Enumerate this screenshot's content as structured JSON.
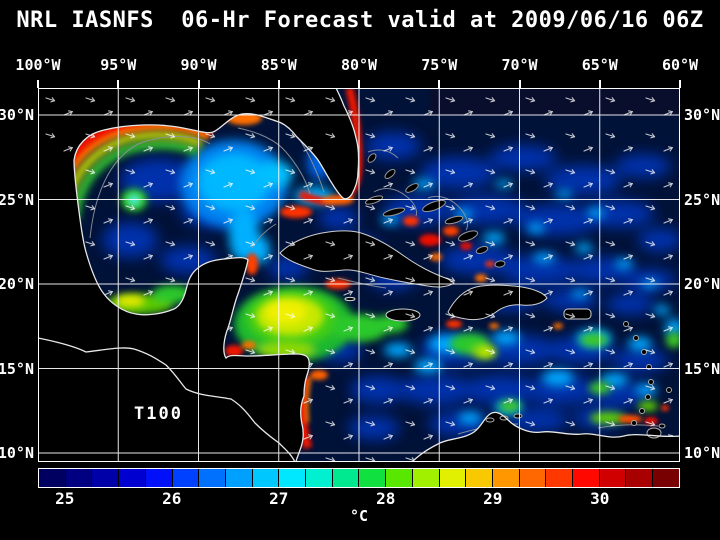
{
  "title": "NRL IASNFS  06-Hr Forecast valid at 2009/06/16 06Z",
  "map": {
    "depth_label": "T100",
    "x_axis": {
      "ticks": [
        "100°W",
        "95°W",
        "90°W",
        "85°W",
        "80°W",
        "75°W",
        "70°W",
        "65°W",
        "60°W"
      ]
    },
    "y_axis_left": {
      "ticks": [
        "30°N",
        "25°N",
        "20°N",
        "15°N",
        "10°N"
      ]
    },
    "y_axis_right": {
      "ticks": [
        "30°N",
        "25°N",
        "20°N",
        "15°N",
        "10°N"
      ]
    }
  },
  "colorbar": {
    "unit": "°C",
    "tick_labels": [
      "25",
      "26",
      "27",
      "28",
      "29",
      "30"
    ],
    "segment_colors": [
      "#000060",
      "#000080",
      "#0000a8",
      "#0000d0",
      "#0010f8",
      "#0040ff",
      "#0070ff",
      "#00a0ff",
      "#00c8ff",
      "#00e8ff",
      "#00f0d0",
      "#00e890",
      "#10e040",
      "#58e800",
      "#a0f000",
      "#e0f000",
      "#f8c800",
      "#ff9800",
      "#ff6800",
      "#ff3800",
      "#ff0800",
      "#d00000",
      "#a80000",
      "#780000"
    ]
  },
  "colors": {
    "background": "#000000",
    "ocean_base": "#001238",
    "coastline": "#e8e8e8",
    "grid": "#ffffff",
    "vectors": "#ffffff",
    "text": "#ffffff"
  }
}
